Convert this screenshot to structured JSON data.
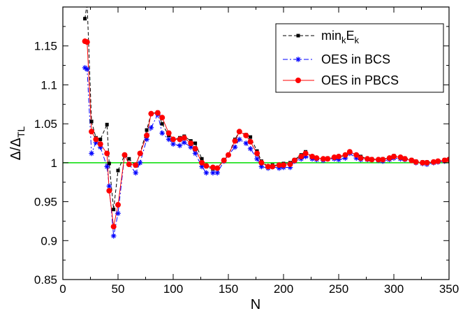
{
  "chart_data": {
    "type": "line",
    "xlabel": "N",
    "ylabel": "Δ/Δ",
    "ylabel_sub": "TL",
    "xlim": [
      0,
      350
    ],
    "ylim": [
      0.85,
      1.2
    ],
    "x_ticks": [
      0,
      50,
      100,
      150,
      200,
      250,
      300,
      350
    ],
    "x_tick_labels": [
      "0",
      "50",
      "100",
      "150",
      "200",
      "250",
      "300",
      "350"
    ],
    "y_ticks": [
      0.85,
      0.9,
      0.95,
      1.0,
      1.05,
      1.1,
      1.15
    ],
    "y_tick_labels": [
      "0.85",
      "0.9",
      "0.95",
      "1",
      "1.05",
      "1.1",
      "1.15"
    ],
    "reference_line": {
      "y": 1.0,
      "color": "#00dd00"
    },
    "legend": {
      "position": "top-right"
    },
    "series": [
      {
        "name": "min",
        "name_sub1": "k",
        "name_mid": "E",
        "name_sub2": "k",
        "color": "#000000",
        "marker": "square",
        "line": "dashed",
        "x": [
          20,
          22,
          26,
          30,
          34,
          40,
          42,
          46,
          50,
          56,
          60,
          66,
          70,
          76,
          80,
          86,
          90,
          96,
          100,
          106,
          110,
          116,
          120,
          126,
          130,
          136,
          140,
          146,
          150,
          156,
          160,
          166,
          170,
          176,
          180,
          186,
          190,
          196,
          200,
          206,
          210,
          216,
          220,
          226,
          230,
          236,
          240,
          246,
          250,
          256,
          260,
          266,
          270,
          276,
          280,
          286,
          290,
          296,
          300,
          306,
          310,
          316,
          320,
          326,
          330,
          336,
          340,
          346,
          350
        ],
        "y": [
          1.185,
          1.205,
          1.053,
          1.032,
          1.03,
          1.049,
          0.999,
          0.94,
          0.99,
          1.01,
          1.005,
          0.996,
          1.012,
          1.042,
          1.063,
          1.065,
          1.05,
          1.035,
          1.03,
          1.032,
          1.034,
          1.028,
          1.025,
          1.005,
          0.995,
          0.992,
          0.993,
          1.004,
          1.01,
          1.03,
          1.04,
          1.036,
          1.033,
          1.015,
          1.002,
          0.995,
          0.997,
          0.997,
          0.999,
          1.0,
          1.004,
          1.01,
          1.014,
          1.008,
          1.006,
          1.005,
          1.006,
          1.006,
          1.007,
          1.009,
          1.014,
          1.01,
          1.008,
          1.005,
          1.005,
          1.004,
          1.005,
          1.006,
          1.009,
          1.006,
          1.006,
          1.004,
          1.002,
          1.001,
          1.001,
          1.001,
          1.002,
          1.004,
          1.005
        ]
      },
      {
        "name": "OES in BCS",
        "color": "#0000ff",
        "marker": "star",
        "line": "dashdot",
        "x": [
          20,
          22,
          26,
          30,
          34,
          40,
          42,
          46,
          50,
          56,
          60,
          66,
          70,
          76,
          80,
          86,
          90,
          96,
          100,
          106,
          110,
          116,
          120,
          126,
          130,
          136,
          140,
          146,
          150,
          156,
          160,
          166,
          170,
          176,
          180,
          186,
          190,
          196,
          200,
          206,
          210,
          216,
          220,
          226,
          230,
          236,
          240,
          246,
          250,
          256,
          260,
          266,
          270,
          276,
          280,
          286,
          290,
          296,
          300,
          306,
          310,
          316,
          320,
          326,
          330,
          336,
          340,
          346,
          350
        ],
        "y": [
          1.122,
          1.12,
          1.012,
          1.026,
          1.02,
          0.995,
          0.97,
          0.906,
          0.935,
          1.01,
          0.998,
          0.987,
          1.0,
          1.03,
          1.045,
          1.062,
          1.038,
          1.03,
          1.024,
          1.022,
          1.026,
          1.02,
          1.012,
          0.995,
          0.987,
          0.987,
          0.987,
          1.002,
          1.01,
          1.02,
          1.03,
          1.025,
          1.018,
          1.005,
          0.995,
          0.993,
          0.995,
          0.993,
          0.994,
          0.994,
          1.002,
          1.005,
          1.008,
          1.005,
          1.004,
          1.003,
          1.005,
          1.005,
          1.004,
          1.006,
          1.012,
          1.006,
          1.004,
          1.004,
          1.004,
          1.003,
          1.002,
          1.004,
          1.006,
          1.005,
          1.004,
          1.003,
          1.0,
          0.999,
          0.998,
          1.0,
          1.001,
          1.002,
          1.004
        ]
      },
      {
        "name": "OES in PBCS",
        "color": "#ff0000",
        "marker": "circle",
        "line": "solid",
        "x": [
          20,
          22,
          26,
          30,
          34,
          40,
          42,
          46,
          50,
          56,
          60,
          66,
          70,
          76,
          80,
          86,
          90,
          96,
          100,
          106,
          110,
          116,
          120,
          126,
          130,
          136,
          140,
          146,
          150,
          156,
          160,
          166,
          170,
          176,
          180,
          186,
          190,
          196,
          200,
          206,
          210,
          216,
          220,
          226,
          230,
          236,
          240,
          246,
          250,
          256,
          260,
          266,
          270,
          276,
          280,
          286,
          290,
          296,
          300,
          306,
          310,
          316,
          320,
          326,
          330,
          336,
          340,
          346,
          350
        ],
        "y": [
          1.156,
          1.155,
          1.04,
          1.03,
          1.024,
          1.012,
          0.964,
          0.918,
          0.946,
          1.01,
          0.998,
          0.997,
          1.012,
          1.035,
          1.063,
          1.064,
          1.058,
          1.038,
          1.03,
          1.03,
          1.032,
          1.025,
          1.018,
          1.0,
          0.996,
          0.994,
          0.993,
          1.003,
          1.01,
          1.028,
          1.04,
          1.035,
          1.027,
          1.012,
          1.0,
          0.995,
          0.995,
          0.997,
          0.997,
          0.998,
          1.003,
          1.008,
          1.012,
          1.008,
          1.006,
          1.005,
          1.005,
          1.007,
          1.008,
          1.01,
          1.014,
          1.01,
          1.006,
          1.005,
          1.004,
          1.004,
          1.004,
          1.006,
          1.008,
          1.007,
          1.005,
          1.003,
          1.001,
          1.0,
          1.0,
          1.001,
          1.002,
          1.003,
          1.004
        ]
      }
    ]
  }
}
